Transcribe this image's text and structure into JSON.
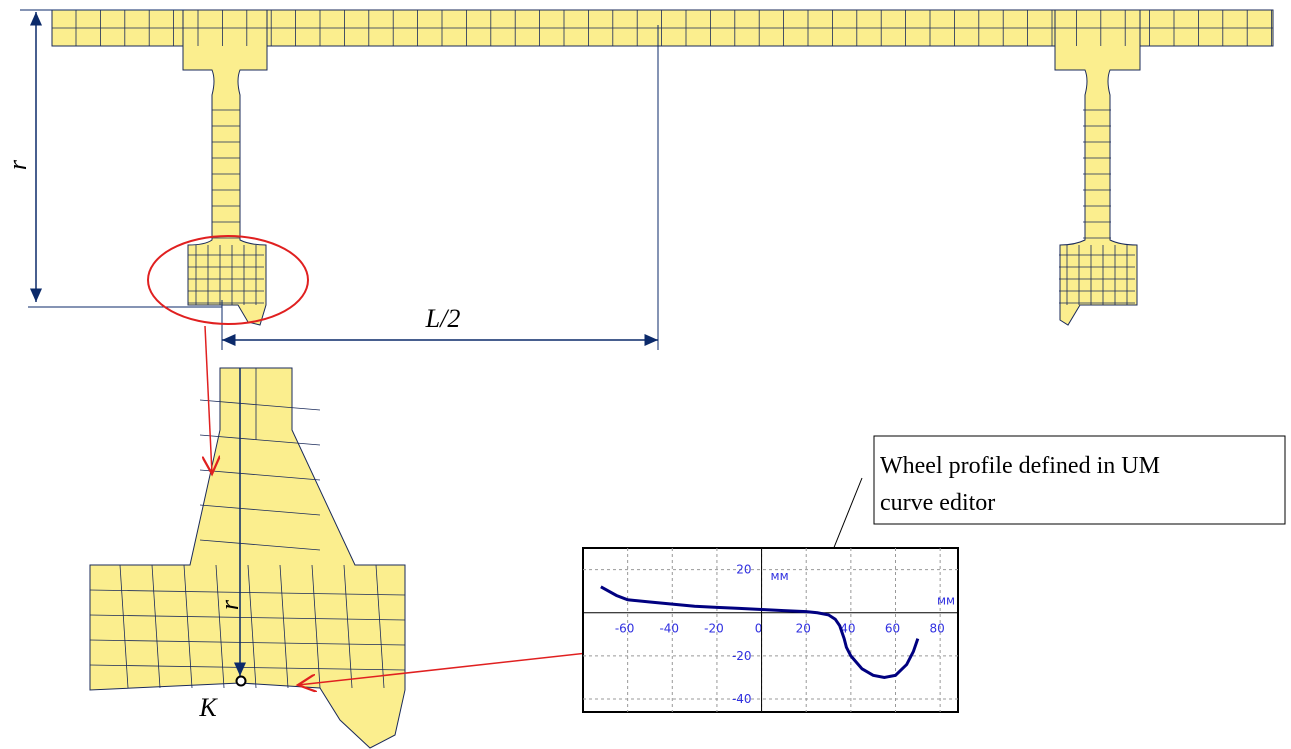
{
  "labels": {
    "r": "r",
    "half_length": "L/2",
    "r_zoom": "r",
    "point": "K"
  },
  "callout": [
    "Wheel profile defined in UM",
    "curve editor"
  ],
  "chart_data": {
    "type": "line",
    "x": [
      -72,
      -65,
      -60,
      -50,
      -40,
      -30,
      -20,
      -10,
      0,
      10,
      20,
      25,
      30,
      33,
      35,
      37,
      38,
      40,
      45,
      50,
      55,
      60,
      65,
      68,
      70
    ],
    "series": [
      {
        "color": "#000080",
        "values": [
          12,
          8,
          6,
          5,
          4,
          3,
          2.5,
          2,
          1.5,
          1,
          0.5,
          0,
          -1,
          -3,
          -6,
          -12,
          -16,
          -20,
          -26,
          -29,
          -30,
          -29,
          -24,
          -18,
          -12
        ]
      }
    ],
    "xlim": [
      -80,
      88
    ],
    "ylim": [
      -46,
      30
    ],
    "xticks": [
      -60,
      -40,
      -20,
      0,
      20,
      40,
      60,
      80
    ],
    "yticks": [
      -40,
      -20,
      20
    ],
    "x_label": "мм",
    "y_label": "мм",
    "grid": true
  }
}
